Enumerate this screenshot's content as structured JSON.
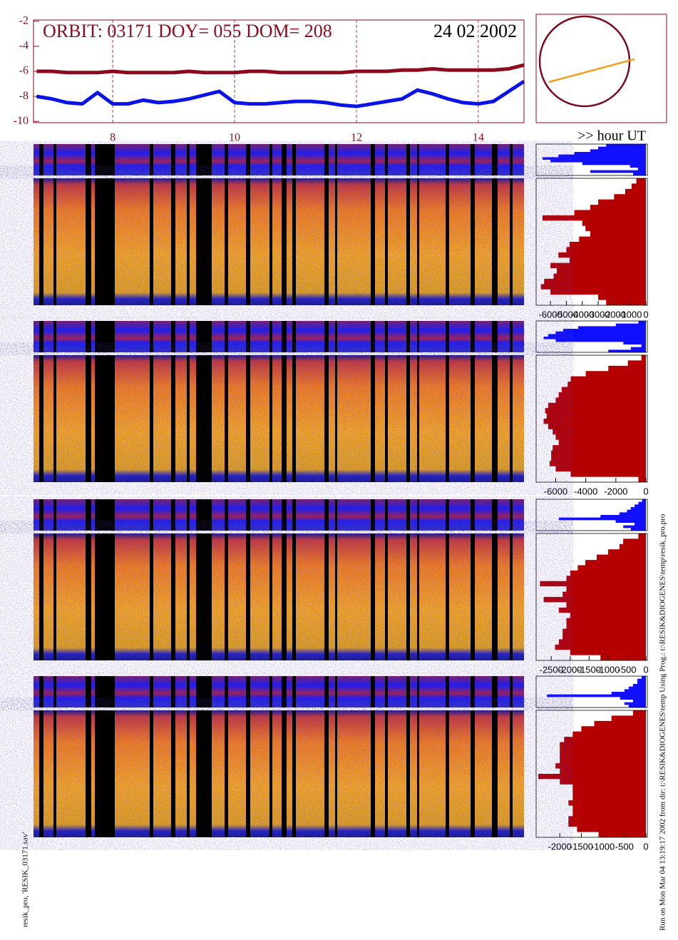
{
  "chart_data": [
    {
      "type": "line",
      "title": "ORBIT: 03171 DOY=  055 DOM=  208",
      "date": "24 02 2002",
      "x_label": ">> hour UT",
      "x": [
        6.75,
        7,
        7.25,
        7.5,
        7.75,
        8,
        8.25,
        8.5,
        8.75,
        9,
        9.25,
        9.5,
        9.75,
        10,
        10.25,
        10.5,
        10.75,
        11,
        11.25,
        11.5,
        11.75,
        12,
        12.25,
        12.5,
        12.75,
        13,
        13.25,
        13.5,
        13.75,
        14,
        14.25,
        14.5,
        14.75
      ],
      "xlim": [
        6.7,
        14.75
      ],
      "xticks": [
        8,
        10,
        12,
        14
      ],
      "ylim": [
        -10.1,
        -1.9
      ],
      "yticks": [
        -10,
        -8,
        -6,
        -4,
        -2
      ],
      "grid": true,
      "series": [
        {
          "color": "#8b0a1e",
          "values": [
            -6.0,
            -6.0,
            -6.1,
            -6.1,
            -6.1,
            -6.0,
            -6.1,
            -6.1,
            -6.1,
            -6.1,
            -6.0,
            -6.1,
            -6.1,
            -6.1,
            -6.0,
            -6.0,
            -6.1,
            -6.1,
            -6.1,
            -6.1,
            -6.1,
            -6.0,
            -6.0,
            -6.0,
            -5.9,
            -5.9,
            -5.8,
            -5.9,
            -5.9,
            -5.9,
            -5.9,
            -5.8,
            -5.5
          ]
        },
        {
          "color": "#0a14e6",
          "values": [
            -8.0,
            -8.2,
            -8.5,
            -8.6,
            -7.7,
            -8.6,
            -8.6,
            -8.3,
            -8.5,
            -8.4,
            -8.2,
            -7.9,
            -7.6,
            -8.5,
            -8.6,
            -8.6,
            -8.5,
            -8.4,
            -8.4,
            -8.5,
            -8.7,
            -8.8,
            -8.6,
            -8.4,
            -8.2,
            -7.5,
            -7.8,
            -8.2,
            -8.5,
            -8.6,
            -8.4,
            -7.6,
            -6.8
          ]
        }
      ]
    },
    {
      "type": "profile",
      "xlim": [
        -6900,
        0
      ],
      "xticks": [
        -6000,
        -5000,
        -4000,
        -3000,
        -2000,
        -1000,
        0
      ],
      "series": [
        {
          "color": "#1010ff",
          "values": [
            -2500,
            -3000,
            -3500,
            -4500,
            -5500,
            -6500,
            -6000,
            -4000,
            -1000,
            -500,
            -3500,
            -800
          ]
        },
        {
          "color": "#b40000",
          "values": [
            -600,
            -900,
            -1300,
            -2000,
            -3000,
            -3500,
            -4500,
            -6500,
            -4000,
            -3800,
            -3500,
            -4200,
            -4800,
            -5000,
            -5500,
            -4800,
            -6000,
            -5600,
            -5800,
            -6400,
            -6600,
            -6000,
            -3000,
            -2500
          ]
        }
      ]
    },
    {
      "type": "profile",
      "xlim": [
        -7300,
        0
      ],
      "xticks": [
        -6000,
        -4000,
        -2000,
        0
      ],
      "series": [
        {
          "color": "#1010ff",
          "values": [
            -500,
            -2000,
            -4500,
            -5500,
            -6000,
            -6500,
            -6800,
            -6000,
            -1500,
            -300,
            -1000,
            -2500
          ]
        },
        {
          "color": "#b40000",
          "values": [
            -300,
            -1200,
            -2500,
            -4000,
            -5000,
            -5200,
            -5600,
            -5800,
            -6000,
            -6500,
            -6700,
            -6600,
            -6800,
            -6500,
            -6200,
            -6000,
            -5800,
            -6200,
            -6300,
            -6300,
            -6400,
            -6000,
            -5000,
            -500
          ]
        }
      ]
    },
    {
      "type": "profile",
      "xlim": [
        -2900,
        0
      ],
      "xticks": [
        -2500,
        -2000,
        -1500,
        -1000,
        -500,
        0
      ],
      "series": [
        {
          "color": "#1010ff",
          "values": [
            -100,
            -200,
            -300,
            -400,
            -500,
            -700,
            -1200,
            -2300,
            -800,
            -300,
            -600,
            -400
          ]
        },
        {
          "color": "#b40000",
          "values": [
            -200,
            -600,
            -700,
            -1000,
            -1300,
            -1600,
            -1800,
            -2000,
            -2100,
            -2800,
            -2100,
            -2200,
            -2700,
            -2100,
            -2300,
            -2000,
            -2100,
            -2100,
            -2200,
            -2200,
            -2300,
            -2400,
            -2000,
            -1200
          ]
        }
      ]
    },
    {
      "type": "profile",
      "xlim": [
        -2550,
        0
      ],
      "xticks": [
        -2000,
        -1500,
        -1000,
        -500,
        0
      ],
      "series": [
        {
          "color": "#1010ff",
          "values": [
            -100,
            -200,
            -200,
            -300,
            -400,
            -500,
            -800,
            -2300,
            -600,
            -300,
            -500,
            -400
          ]
        },
        {
          "color": "#b40000",
          "values": [
            -300,
            -800,
            -1200,
            -1500,
            -1700,
            -1900,
            -2000,
            -2000,
            -2000,
            -2000,
            -2100,
            -2000,
            -2500,
            -2000,
            -1700,
            -1700,
            -1700,
            -1800,
            -1700,
            -1700,
            -1800,
            -1800,
            -1600,
            -1100
          ]
        }
      ]
    }
  ],
  "footer": {
    "left": "resik_pro, 'RESIK_03171.sav'",
    "right": "Run on Mon Mar 04 13:19:17 2002  from dir: t:\\RESIK&DIOGENES\\temp Using Prog.: t:\\RESIK&DIOGENES\\temp\\resik_pro.pro"
  }
}
